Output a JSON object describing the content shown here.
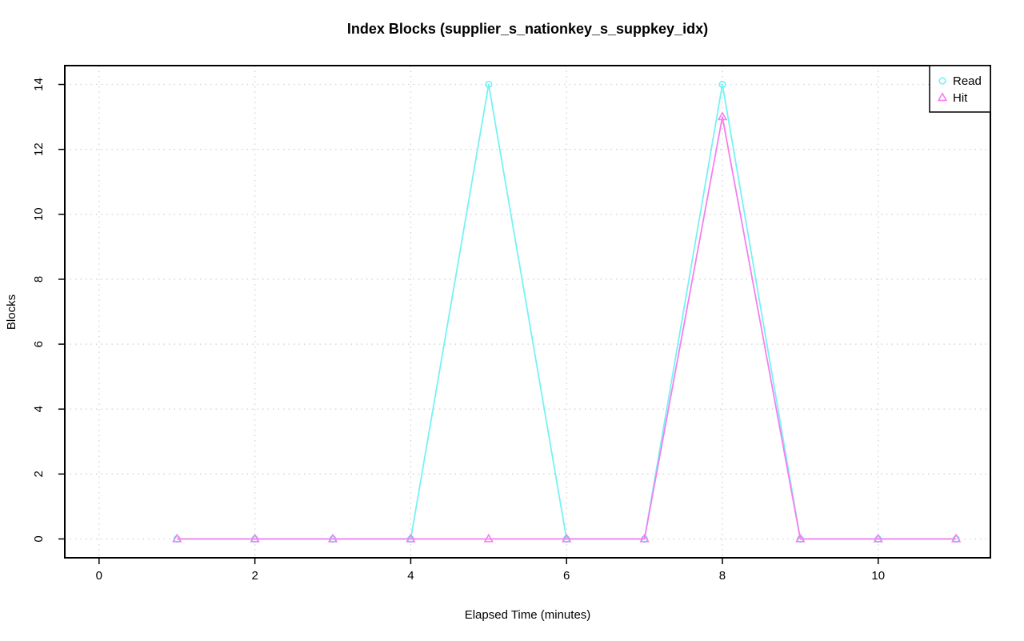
{
  "title": "Index Blocks (supplier_s_nationkey_s_suppkey_idx)",
  "chart_data": {
    "type": "line",
    "title": "Index Blocks (supplier_s_nationkey_s_suppkey_idx)",
    "xlabel": "Elapsed Time (minutes)",
    "ylabel": "Blocks",
    "x": [
      1,
      2,
      3,
      4,
      5,
      6,
      7,
      8,
      9,
      10,
      11
    ],
    "series": [
      {
        "name": "Read",
        "marker": "circle",
        "color": "#75F2F4",
        "values": [
          0,
          0,
          0,
          0,
          14,
          0,
          0,
          14,
          0,
          0,
          0
        ]
      },
      {
        "name": "Hit",
        "marker": "triangle",
        "color": "#F67EEF",
        "values": [
          0,
          0,
          0,
          0,
          0,
          0,
          0,
          13,
          0,
          0,
          0
        ]
      }
    ],
    "xticks": [
      0,
      2,
      4,
      6,
      8,
      10
    ],
    "yticks": [
      0,
      2,
      4,
      6,
      8,
      10,
      12,
      14
    ],
    "xlim": [
      -0.44,
      11.44
    ],
    "ylim": [
      -0.58,
      14.58
    ],
    "grid": true,
    "grid_color": "#d2d2d2",
    "axis_color": "#000000",
    "background_color": "#ffffff",
    "legend_position": "top-right"
  }
}
